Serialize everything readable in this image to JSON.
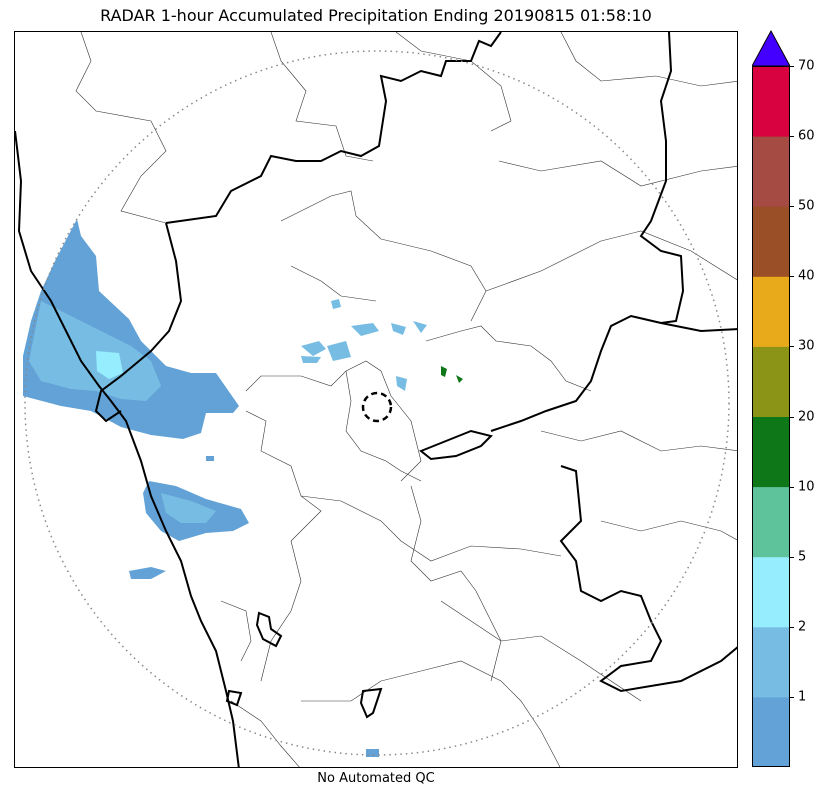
{
  "title": "RADAR 1-hour Accumulated Precipitation Ending 20190815 01:58:10",
  "footer": "No Automated QC",
  "colorbar": {
    "colors": [
      "#62a2d6",
      "#77bde3",
      "#96edfd",
      "#5ec29a",
      "#0e7717",
      "#8b9416",
      "#e8a91b",
      "#9b4f26",
      "#a64a44",
      "#d7023f"
    ],
    "overflow_color": "#4400ff",
    "tick_labels": [
      "1",
      "2",
      "5",
      "10",
      "20",
      "30",
      "40",
      "50",
      "60",
      "70"
    ]
  },
  "map": {
    "radar_range_ring": "dotted",
    "radar_site_marker": "dashed-circle",
    "colors": {
      "border_thick": "#000000",
      "border_thin": "#333333",
      "ring": "#888888"
    }
  }
}
